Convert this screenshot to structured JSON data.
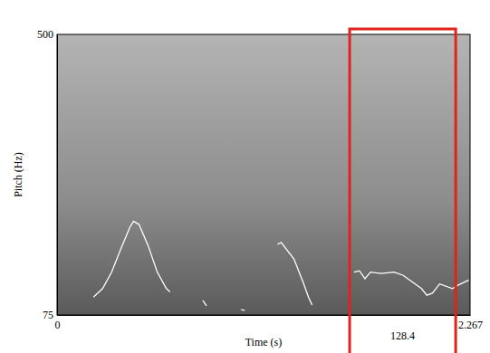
{
  "chart_data": {
    "type": "line",
    "x_label": "Time (s)",
    "y_label": "Pitch (Hz)",
    "x": [
      0.2,
      0.25,
      0.3,
      0.35,
      0.4,
      0.42,
      0.45,
      0.5,
      0.55,
      0.6,
      0.62,
      null,
      0.8,
      0.82,
      null,
      1.01,
      1.03,
      null,
      1.21,
      1.23,
      1.3,
      1.35,
      1.38,
      1.4,
      null,
      1.63,
      1.66,
      1.69,
      1.72,
      1.78,
      1.85,
      1.9,
      1.95,
      2.0,
      2.03,
      2.06,
      2.1,
      2.17,
      2.2,
      2.26
    ],
    "values": [
      102,
      115,
      140,
      175,
      208,
      217,
      212,
      180,
      140,
      115,
      110,
      null,
      97,
      89,
      null,
      83,
      82,
      null,
      182,
      185,
      160,
      125,
      102,
      90,
      null,
      140,
      142,
      130,
      140,
      138,
      140,
      135,
      125,
      115,
      105,
      108,
      122,
      115,
      120,
      128
    ],
    "color": "#ffffff",
    "xlim": [
      0,
      2.267
    ],
    "xticks": [
      0,
      2.267
    ],
    "ylim": [
      75,
      500
    ],
    "yticks": [
      75,
      500
    ],
    "grid": false,
    "highlight": {
      "x": [
        1.606,
        2.188
      ],
      "value": 128.4,
      "color": "#e0231c"
    }
  }
}
